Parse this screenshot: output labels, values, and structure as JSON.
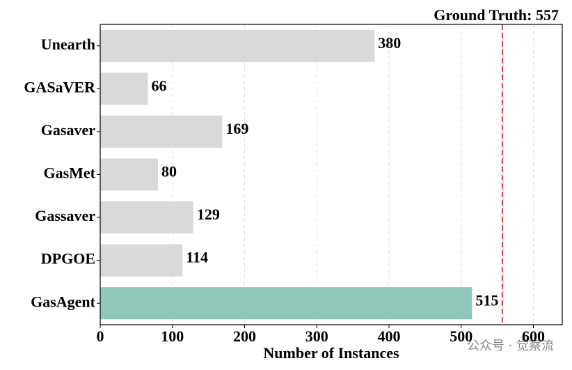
{
  "chart_data": {
    "type": "barh",
    "annotation": "Ground Truth: 557",
    "reference_line": {
      "value": 557,
      "color": "#e8413e"
    },
    "x_label": "Number of Instances",
    "categories": [
      "Unearth",
      "GASaVER",
      "Gasaver",
      "GasMet",
      "Gassaver",
      "DPGOE",
      "GasAgent"
    ],
    "values": [
      380,
      66,
      169,
      80,
      129,
      114,
      515
    ],
    "colors": [
      "#d9d9d9",
      "#d9d9d9",
      "#d9d9d9",
      "#d9d9d9",
      "#d9d9d9",
      "#d9d9d9",
      "#8fc8bb"
    ],
    "xlim": [
      0,
      640
    ],
    "xticks": [
      0,
      100,
      200,
      300,
      400,
      500,
      600
    ],
    "grid": true,
    "watermark": "公众号 · 觉察流"
  }
}
